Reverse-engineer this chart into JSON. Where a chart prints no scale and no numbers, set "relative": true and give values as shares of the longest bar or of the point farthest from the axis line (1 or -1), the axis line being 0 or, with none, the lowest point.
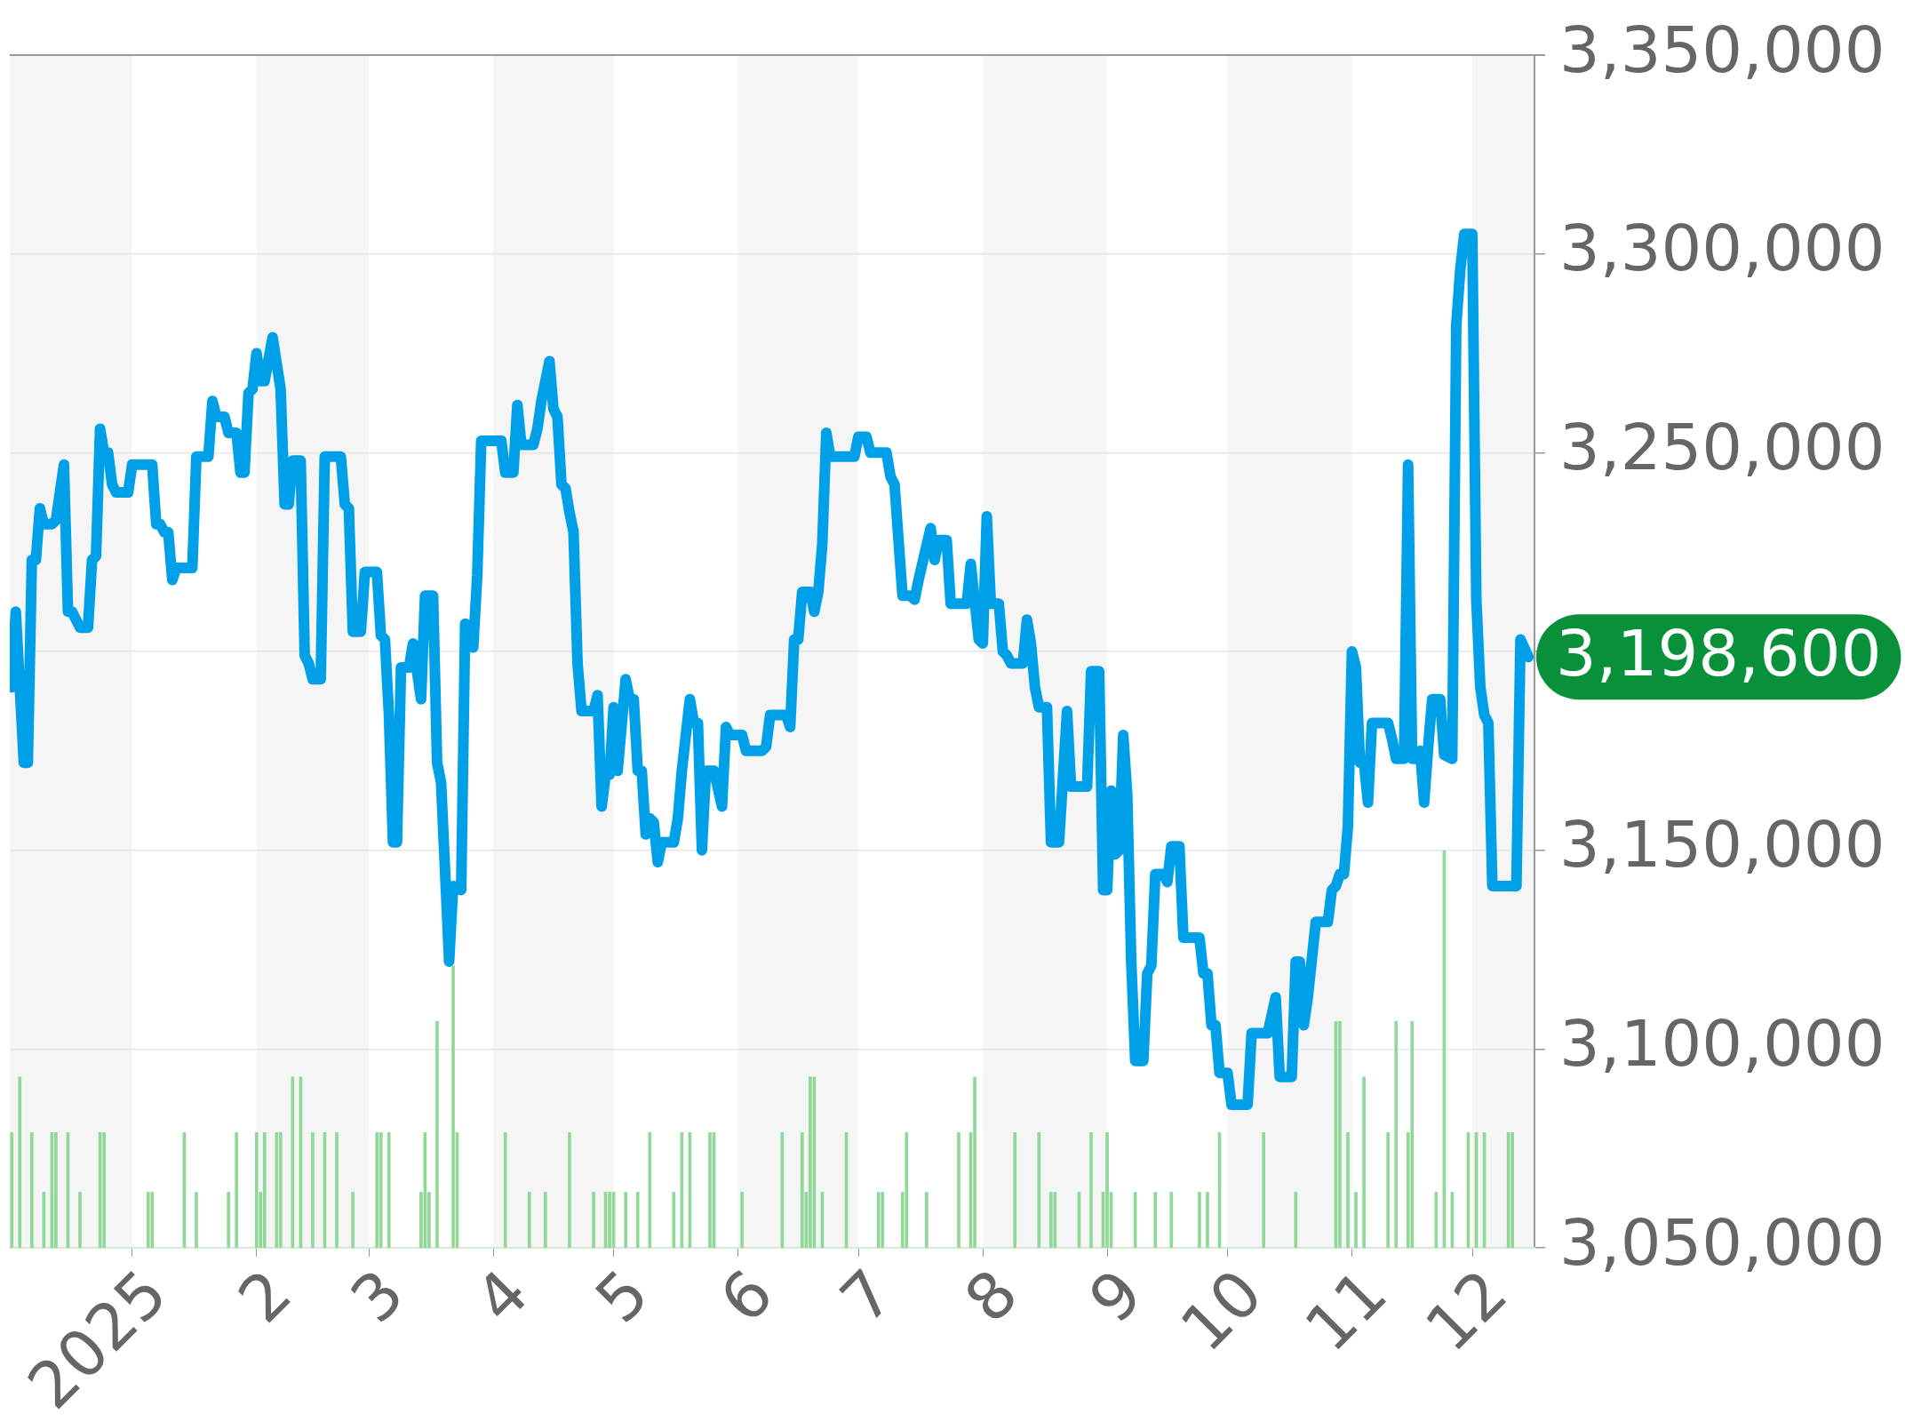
{
  "chart_data": [
    {
      "type": "line",
      "xlim": [
        "2024-12-01T12:00",
        "2025-12-16T12:00"
      ],
      "xticks": [
        {
          "value": "2025-01-01",
          "label": "2025"
        },
        {
          "value": "2025-02-01",
          "label": "2"
        },
        {
          "value": "2025-03-01",
          "label": "3"
        },
        {
          "value": "2025-04-01",
          "label": "4"
        },
        {
          "value": "2025-05-01",
          "label": "5"
        },
        {
          "value": "2025-06-01",
          "label": "6"
        },
        {
          "value": "2025-07-01",
          "label": "7"
        },
        {
          "value": "2025-08-01",
          "label": "8"
        },
        {
          "value": "2025-09-01",
          "label": "9"
        },
        {
          "value": "2025-10-01",
          "label": "10"
        },
        {
          "value": "2025-11-01",
          "label": "11"
        },
        {
          "value": "2025-12-01",
          "label": "12"
        }
      ],
      "ylim": [
        3050000,
        3350000
      ],
      "yticks": [
        {
          "value": 3050000,
          "label": "3,050,000"
        },
        {
          "value": 3100000,
          "label": "3,100,000"
        },
        {
          "value": 3150000,
          "label": "3,150,000"
        },
        {
          "value": 3200000,
          "label": null
        },
        {
          "value": 3250000,
          "label": "3,250,000"
        },
        {
          "value": 3300000,
          "label": "3,300,000"
        },
        {
          "value": 3350000,
          "label": "3,350,000"
        }
      ],
      "grid": "y",
      "legend": false,
      "bands": [
        {
          "axis": "x",
          "from": "2024-12-01T12:00",
          "to": "2025-01-01",
          "color": "#f5f5f5"
        },
        {
          "axis": "x",
          "from": "2025-02-01",
          "to": "2025-03-01",
          "color": "#f5f5f5"
        },
        {
          "axis": "x",
          "from": "2025-04-01",
          "to": "2025-05-01",
          "color": "#f5f5f5"
        },
        {
          "axis": "x",
          "from": "2025-06-01",
          "to": "2025-07-01",
          "color": "#f5f5f5"
        },
        {
          "axis": "x",
          "from": "2025-08-01",
          "to": "2025-09-01",
          "color": "#f5f5f5"
        },
        {
          "axis": "x",
          "from": "2025-10-01",
          "to": "2025-11-01",
          "color": "#f5f5f5"
        },
        {
          "axis": "x",
          "from": "2025-12-01",
          "to": "2025-12-16T12:00",
          "color": "#f5f5f5"
        }
      ],
      "annotations": [
        "3,198,600"
      ],
      "color": "#00a0e9",
      "x": [
        "2024-12-02",
        "2024-12-03",
        "2024-12-05",
        "2024-12-06",
        "2024-12-07",
        "2024-12-08",
        "2024-12-09",
        "2024-12-10",
        "2024-12-12",
        "2024-12-13",
        "2024-12-15",
        "2024-12-16",
        "2024-12-17",
        "2024-12-19",
        "2024-12-21",
        "2024-12-22",
        "2024-12-23",
        "2024-12-24",
        "2024-12-25",
        "2024-12-26",
        "2024-12-27",
        "2024-12-28",
        "2024-12-31",
        "2025-01-01",
        "2025-01-06",
        "2025-01-07",
        "2025-01-08",
        "2025-01-09",
        "2025-01-10",
        "2025-01-11",
        "2025-01-12",
        "2025-01-16",
        "2025-01-17",
        "2025-01-20",
        "2025-01-21",
        "2025-01-22",
        "2025-01-24",
        "2025-01-25",
        "2025-01-27",
        "2025-01-28",
        "2025-01-29",
        "2025-01-30",
        "2025-01-31",
        "2025-02-01",
        "2025-02-02",
        "2025-02-03",
        "2025-02-05",
        "2025-02-07",
        "2025-02-08",
        "2025-02-09",
        "2025-02-10",
        "2025-02-12",
        "2025-02-13",
        "2025-02-14",
        "2025-02-15",
        "2025-02-17",
        "2025-02-18",
        "2025-02-22",
        "2025-02-23",
        "2025-02-24",
        "2025-02-25",
        "2025-02-27",
        "2025-02-28",
        "2025-03-03",
        "2025-03-04",
        "2025-03-05",
        "2025-03-06",
        "2025-03-07",
        "2025-03-08",
        "2025-03-09",
        "2025-03-11",
        "2025-03-12",
        "2025-03-14",
        "2025-03-15",
        "2025-03-17",
        "2025-03-18",
        "2025-03-19",
        "2025-03-21",
        "2025-03-22",
        "2025-03-24",
        "2025-03-25",
        "2025-03-27",
        "2025-03-28",
        "2025-03-29",
        "2025-04-03",
        "2025-04-04",
        "2025-04-06",
        "2025-04-07",
        "2025-04-08",
        "2025-04-11",
        "2025-04-12",
        "2025-04-13",
        "2025-04-15",
        "2025-04-16",
        "2025-04-17",
        "2025-04-18",
        "2025-04-19",
        "2025-04-20",
        "2025-04-21",
        "2025-04-22",
        "2025-04-23",
        "2025-04-26",
        "2025-04-27",
        "2025-04-28",
        "2025-04-29",
        "2025-04-30",
        "2025-05-01",
        "2025-05-02",
        "2025-05-04",
        "2025-05-05",
        "2025-05-06",
        "2025-05-07",
        "2025-05-08",
        "2025-05-09",
        "2025-05-10",
        "2025-05-11",
        "2025-05-12",
        "2025-05-13",
        "2025-05-16",
        "2025-05-17",
        "2025-05-18",
        "2025-05-20",
        "2025-05-21",
        "2025-05-22",
        "2025-05-23",
        "2025-05-24",
        "2025-05-26",
        "2025-05-28",
        "2025-05-29",
        "2025-05-30",
        "2025-06-02",
        "2025-06-03",
        "2025-06-07",
        "2025-06-08",
        "2025-06-09",
        "2025-06-13",
        "2025-06-14",
        "2025-06-15",
        "2025-06-16",
        "2025-06-17",
        "2025-06-19",
        "2025-06-20",
        "2025-06-21",
        "2025-06-22",
        "2025-06-23",
        "2025-06-24",
        "2025-06-30",
        "2025-07-01",
        "2025-07-03",
        "2025-07-04",
        "2025-07-08",
        "2025-07-09",
        "2025-07-10",
        "2025-07-12",
        "2025-07-14",
        "2025-07-15",
        "2025-07-16",
        "2025-07-19",
        "2025-07-20",
        "2025-07-21",
        "2025-07-23",
        "2025-07-24",
        "2025-07-28",
        "2025-07-29",
        "2025-07-31",
        "2025-08-01",
        "2025-08-02",
        "2025-08-03",
        "2025-08-05",
        "2025-08-06",
        "2025-08-07",
        "2025-08-08",
        "2025-08-11",
        "2025-08-12",
        "2025-08-13",
        "2025-08-14",
        "2025-08-15",
        "2025-08-17",
        "2025-08-18",
        "2025-08-20",
        "2025-08-22",
        "2025-08-23",
        "2025-08-27",
        "2025-08-28",
        "2025-08-30",
        "2025-08-31",
        "2025-09-01",
        "2025-09-02",
        "2025-09-03",
        "2025-09-04",
        "2025-09-05",
        "2025-09-06",
        "2025-09-07",
        "2025-09-08",
        "2025-09-10",
        "2025-09-11",
        "2025-09-12",
        "2025-09-13",
        "2025-09-15",
        "2025-09-16",
        "2025-09-17",
        "2025-09-19",
        "2025-09-20",
        "2025-09-24",
        "2025-09-25",
        "2025-09-26",
        "2025-09-27",
        "2025-09-28",
        "2025-09-29",
        "2025-10-01",
        "2025-10-02",
        "2025-10-06",
        "2025-10-07",
        "2025-10-11",
        "2025-10-13",
        "2025-10-14",
        "2025-10-17",
        "2025-10-18",
        "2025-10-19",
        "2025-10-20",
        "2025-10-21",
        "2025-10-23",
        "2025-10-26",
        "2025-10-27",
        "2025-10-28",
        "2025-10-29",
        "2025-10-30",
        "2025-10-31",
        "2025-11-01",
        "2025-11-02",
        "2025-11-03",
        "2025-11-04",
        "2025-11-05",
        "2025-11-06",
        "2025-11-10",
        "2025-11-11",
        "2025-11-12",
        "2025-11-14",
        "2025-11-15",
        "2025-11-16",
        "2025-11-17",
        "2025-11-18",
        "2025-11-19",
        "2025-11-20",
        "2025-11-21",
        "2025-11-23",
        "2025-11-24",
        "2025-11-26",
        "2025-11-27",
        "2025-11-28",
        "2025-11-29",
        "2025-12-01",
        "2025-12-02",
        "2025-12-03",
        "2025-12-04",
        "2025-12-05",
        "2025-12-06",
        "2025-12-12",
        "2025-12-13",
        "2025-12-15"
      ],
      "values": [
        3191000,
        3210000,
        3172000,
        3172000,
        3223000,
        3223000,
        3236000,
        3232000,
        3232000,
        3233000,
        3247000,
        3210000,
        3210000,
        3206000,
        3206000,
        3223000,
        3224000,
        3256000,
        3250000,
        3250000,
        3242000,
        3240000,
        3240000,
        3247000,
        3247000,
        3232000,
        3232000,
        3230000,
        3230000,
        3218000,
        3221000,
        3221000,
        3249000,
        3249000,
        3263000,
        3259000,
        3259000,
        3255000,
        3255000,
        3245000,
        3245000,
        3265000,
        3266000,
        3275000,
        3268000,
        3268000,
        3279000,
        3266000,
        3237000,
        3237000,
        3248000,
        3248000,
        3199000,
        3197000,
        3193000,
        3193000,
        3249000,
        3249000,
        3237000,
        3236000,
        3205000,
        3205000,
        3220000,
        3220000,
        3204000,
        3203000,
        3184000,
        3152000,
        3152000,
        3196000,
        3196000,
        3202000,
        3188000,
        3214000,
        3214000,
        3172000,
        3167000,
        3122000,
        3141000,
        3140000,
        3207000,
        3201000,
        3219000,
        3253000,
        3253000,
        3245000,
        3245000,
        3262000,
        3252000,
        3252000,
        3256000,
        3263000,
        3273000,
        3261000,
        3259000,
        3242000,
        3241000,
        3235000,
        3230000,
        3197000,
        3185000,
        3185000,
        3189000,
        3161000,
        3169000,
        3169000,
        3186000,
        3170000,
        3193000,
        3188000,
        3188000,
        3170000,
        3170000,
        3154000,
        3158000,
        3157000,
        3147000,
        3152000,
        3152000,
        3158000,
        3170000,
        3188000,
        3182000,
        3182000,
        3150000,
        3170000,
        3170000,
        3161000,
        3181000,
        3179000,
        3179000,
        3175000,
        3175000,
        3176000,
        3184000,
        3184000,
        3181000,
        3203000,
        3203000,
        3215000,
        3215000,
        3210000,
        3215000,
        3227000,
        3255000,
        3249000,
        3249000,
        3254000,
        3254000,
        3250000,
        3250000,
        3244000,
        3242000,
        3214000,
        3214000,
        3213000,
        3218000,
        3231000,
        3223000,
        3228000,
        3228000,
        3212000,
        3212000,
        3222000,
        3203000,
        3202000,
        3234000,
        3212000,
        3212000,
        3200000,
        3199000,
        3197000,
        3197000,
        3208000,
        3202000,
        3191000,
        3186000,
        3186000,
        3152000,
        3152000,
        3185000,
        3166000,
        3166000,
        3195000,
        3195000,
        3140000,
        3140000,
        3165000,
        3149000,
        3150000,
        3179000,
        3164000,
        3122000,
        3097000,
        3097000,
        3119000,
        3121000,
        3144000,
        3144000,
        3142000,
        3151000,
        3151000,
        3128000,
        3128000,
        3119000,
        3119000,
        3106000,
        3106000,
        3094000,
        3094000,
        3086000,
        3086000,
        3104000,
        3104000,
        3113000,
        3093000,
        3093000,
        3122000,
        3122000,
        3106000,
        3113000,
        3132000,
        3132000,
        3140000,
        3141000,
        3144000,
        3144000,
        3156000,
        3200000,
        3196000,
        3172000,
        3172000,
        3162000,
        3182000,
        3182000,
        3178000,
        3173000,
        3173000,
        3247000,
        3173000,
        3173000,
        3175000,
        3162000,
        3176000,
        3188000,
        3188000,
        3174000,
        3173000,
        3282000,
        3296000,
        3305000,
        3305000,
        3213000,
        3191000,
        3184000,
        3182000,
        3141000,
        3141000,
        3203000,
        3198600
      ]
    },
    {
      "type": "bar",
      "relative": true,
      "tick_labels": false,
      "xlim": [
        "2024-12-01T12:00",
        "2025-12-16T12:00"
      ],
      "color": "#90d898",
      "x": [
        "2024-12-02",
        "2024-12-04",
        "2024-12-07",
        "2024-12-10",
        "2024-12-12",
        "2024-12-13",
        "2024-12-16",
        "2024-12-19",
        "2024-12-24",
        "2024-12-25",
        "2025-01-05",
        "2025-01-06",
        "2025-01-14",
        "2025-01-17",
        "2025-01-25",
        "2025-01-27",
        "2025-02-01",
        "2025-02-02",
        "2025-02-03",
        "2025-02-06",
        "2025-02-07",
        "2025-02-10",
        "2025-02-12",
        "2025-02-15",
        "2025-02-18",
        "2025-02-21",
        "2025-02-25",
        "2025-03-03",
        "2025-03-04",
        "2025-03-06",
        "2025-03-14",
        "2025-03-15",
        "2025-03-16",
        "2025-03-18",
        "2025-03-22",
        "2025-03-23",
        "2025-04-04",
        "2025-04-10",
        "2025-04-14",
        "2025-04-20",
        "2025-04-26",
        "2025-04-29",
        "2025-04-30",
        "2025-05-01",
        "2025-05-04",
        "2025-05-07",
        "2025-05-10",
        "2025-05-16",
        "2025-05-18",
        "2025-05-20",
        "2025-05-25",
        "2025-05-26",
        "2025-06-02",
        "2025-06-12",
        "2025-06-17",
        "2025-06-18",
        "2025-06-19",
        "2025-06-20",
        "2025-06-22",
        "2025-06-28",
        "2025-07-06",
        "2025-07-07",
        "2025-07-12",
        "2025-07-13",
        "2025-07-18",
        "2025-07-26",
        "2025-07-29",
        "2025-07-30",
        "2025-08-09",
        "2025-08-15",
        "2025-08-18",
        "2025-08-19",
        "2025-08-25",
        "2025-08-28",
        "2025-08-31",
        "2025-09-01",
        "2025-09-02",
        "2025-09-08",
        "2025-09-13",
        "2025-09-17",
        "2025-09-24",
        "2025-09-26",
        "2025-09-29",
        "2025-10-10",
        "2025-10-18",
        "2025-10-28",
        "2025-10-29",
        "2025-10-31",
        "2025-11-02",
        "2025-11-04",
        "2025-11-10",
        "2025-11-12",
        "2025-11-15",
        "2025-11-16",
        "2025-11-22",
        "2025-11-24",
        "2025-11-26",
        "2025-11-30",
        "2025-12-02",
        "2025-12-04",
        "2025-12-10",
        "2025-12-11"
      ],
      "values": [
        0.29,
        0.43,
        0.29,
        0.14,
        0.29,
        0.29,
        0.29,
        0.14,
        0.29,
        0.29,
        0.14,
        0.14,
        0.29,
        0.14,
        0.14,
        0.29,
        0.29,
        0.14,
        0.29,
        0.29,
        0.29,
        0.43,
        0.43,
        0.29,
        0.29,
        0.29,
        0.14,
        0.29,
        0.29,
        0.29,
        0.14,
        0.29,
        0.14,
        0.57,
        0.71,
        0.29,
        0.29,
        0.14,
        0.14,
        0.29,
        0.14,
        0.14,
        0.14,
        0.14,
        0.14,
        0.14,
        0.29,
        0.14,
        0.29,
        0.29,
        0.29,
        0.29,
        0.14,
        0.29,
        0.29,
        0.14,
        0.43,
        0.43,
        0.14,
        0.29,
        0.14,
        0.14,
        0.14,
        0.29,
        0.14,
        0.29,
        0.29,
        0.43,
        0.29,
        0.29,
        0.14,
        0.14,
        0.14,
        0.29,
        0.14,
        0.29,
        0.14,
        0.14,
        0.14,
        0.14,
        0.14,
        0.14,
        0.29,
        0.29,
        0.14,
        0.57,
        0.57,
        0.29,
        0.14,
        0.43,
        0.29,
        0.57,
        0.29,
        0.57,
        0.14,
        1,
        0.14,
        0.29,
        0.29,
        0.29,
        0.29,
        0.29
      ]
    }
  ]
}
